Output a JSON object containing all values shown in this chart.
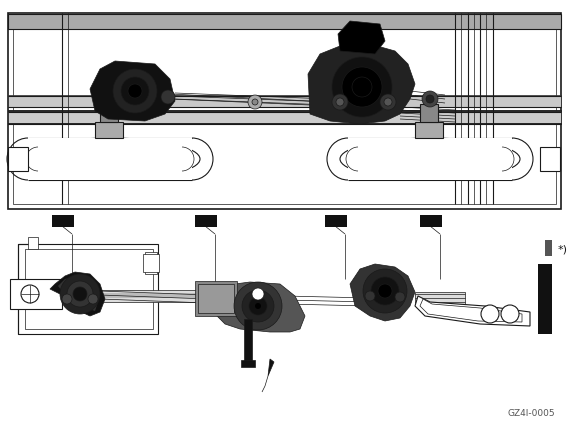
{
  "bg_color": "#ffffff",
  "lc": "#1a1a1a",
  "lc_dark": "#000000",
  "figsize": [
    5.85,
    4.24
  ],
  "dpi": 100,
  "watermark": "GZ4I-0005",
  "lw_thin": 0.5,
  "lw_med": 0.8,
  "lw_thick": 1.2
}
